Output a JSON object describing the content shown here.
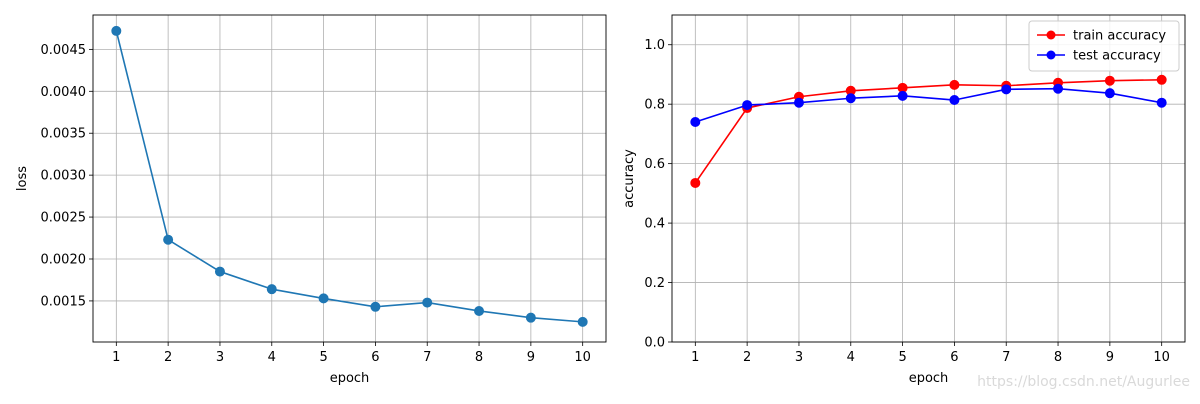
{
  "chart_data": [
    {
      "type": "line",
      "title": "",
      "xlabel": "epoch",
      "ylabel": "loss",
      "x": [
        1,
        2,
        3,
        4,
        5,
        6,
        7,
        8,
        9,
        10
      ],
      "xlim": [
        0.55,
        10.45
      ],
      "ylim": [
        0.00101,
        0.00491
      ],
      "xticks": [
        "1",
        "2",
        "3",
        "4",
        "5",
        "6",
        "7",
        "8",
        "9",
        "10"
      ],
      "yticks": [
        {
          "value": 0.0015,
          "label": "0.0015"
        },
        {
          "value": 0.002,
          "label": "0.0020"
        },
        {
          "value": 0.0025,
          "label": "0.0025"
        },
        {
          "value": 0.003,
          "label": "0.0030"
        },
        {
          "value": 0.0035,
          "label": "0.0035"
        },
        {
          "value": 0.004,
          "label": "0.0040"
        },
        {
          "value": 0.0045,
          "label": "0.0045"
        }
      ],
      "grid": true,
      "legend": null,
      "series": [
        {
          "name": "",
          "color": "#1f77b4",
          "marker": "circle",
          "values": [
            0.00472,
            0.00223,
            0.00185,
            0.00164,
            0.00153,
            0.00143,
            0.00148,
            0.00138,
            0.0013,
            0.00125
          ]
        }
      ]
    },
    {
      "type": "line",
      "title": "",
      "xlabel": "epoch",
      "ylabel": "accuracy",
      "x": [
        1,
        2,
        3,
        4,
        5,
        6,
        7,
        8,
        9,
        10
      ],
      "xlim": [
        0.55,
        10.45
      ],
      "ylim": [
        0.0,
        1.1
      ],
      "xticks": [
        "1",
        "2",
        "3",
        "4",
        "5",
        "6",
        "7",
        "8",
        "9",
        "10"
      ],
      "yticks": [
        {
          "value": 0.0,
          "label": "0.0"
        },
        {
          "value": 0.2,
          "label": "0.2"
        },
        {
          "value": 0.4,
          "label": "0.4"
        },
        {
          "value": 0.6,
          "label": "0.6"
        },
        {
          "value": 0.8,
          "label": "0.8"
        },
        {
          "value": 1.0,
          "label": "1.0"
        }
      ],
      "grid": true,
      "legend": "top-right",
      "series": [
        {
          "name": "train accuracy",
          "color": "#ff0000",
          "marker": "circle",
          "values": [
            0.535,
            0.787,
            0.825,
            0.845,
            0.855,
            0.865,
            0.862,
            0.872,
            0.879,
            0.882
          ]
        },
        {
          "name": "test accuracy",
          "color": "#0000ff",
          "marker": "circle",
          "values": [
            0.74,
            0.797,
            0.805,
            0.82,
            0.828,
            0.814,
            0.85,
            0.852,
            0.837,
            0.805
          ]
        }
      ]
    }
  ],
  "watermark": "https://blog.csdn.net/Augurlee"
}
